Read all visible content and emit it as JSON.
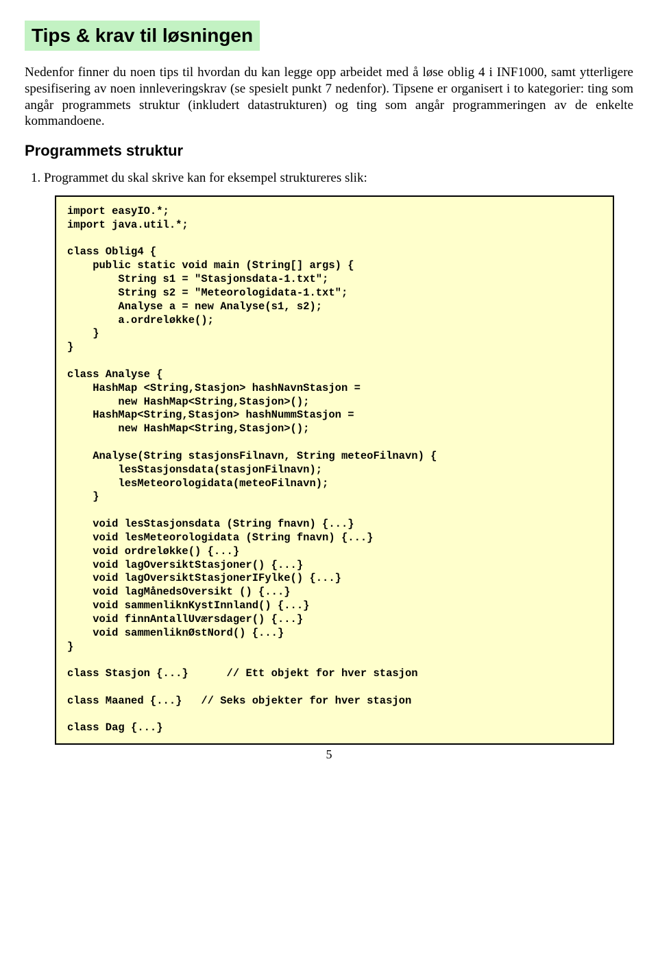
{
  "title": "Tips & krav til løsningen",
  "para1": "Nedenfor finner du noen tips til hvordan du kan legge opp arbeidet med å løse oblig 4 i INF1000, samt ytterligere spesifisering av noen innleveringskrav (se spesielt punkt 7 nedenfor). Tipsene er organisert i to kategorier: ting som angår programmets struktur (inkludert datastrukturen) og ting som angår programmeringen av de enkelte kommandoene.",
  "subheading": "Programmets struktur",
  "list_item_1": "Programmet du skal skrive kan for eksempel struktureres slik:",
  "code": "import easyIO.*;\nimport java.util.*;\n\nclass Oblig4 {\n    public static void main (String[] args) {\n        String s1 = \"Stasjonsdata-1.txt\";\n        String s2 = \"Meteorologidata-1.txt\";\n        Analyse a = new Analyse(s1, s2);\n        a.ordreløkke();\n    }\n}\n\nclass Analyse {\n    HashMap <String,Stasjon> hashNavnStasjon =\n        new HashMap<String,Stasjon>();\n    HashMap<String,Stasjon> hashNummStasjon =\n        new HashMap<String,Stasjon>();\n\n    Analyse(String stasjonsFilnavn, String meteoFilnavn) {\n        lesStasjonsdata(stasjonFilnavn);\n        lesMeteorologidata(meteoFilnavn);\n    }\n\n    void lesStasjonsdata (String fnavn) {...}\n    void lesMeteorologidata (String fnavn) {...}\n    void ordreløkke() {...}\n    void lagOversiktStasjoner() {...}\n    void lagOversiktStasjonerIFylke() {...}\n    void lagMånedsOversikt () {...}\n    void sammenliknKystInnland() {...}\n    void finnAntallUværsdager() {...}\n    void sammenliknØstNord() {...}\n}\n\nclass Stasjon {...}      // Ett objekt for hver stasjon\n\nclass Maaned {...}   // Seks objekter for hver stasjon\n\nclass Dag {...}",
  "colors": {
    "title_highlight": "#c3f2c3",
    "code_bg": "#ffffcc",
    "code_border": "#000000",
    "page_bg": "#ffffff",
    "text": "#000000"
  },
  "fonts": {
    "title_family": "Arial",
    "title_size_pt": 21,
    "body_family": "Times New Roman",
    "body_size_pt": 14,
    "subheading_size_pt": 17,
    "code_family": "Courier New",
    "code_size_pt": 12,
    "code_weight": "bold"
  },
  "page_number": "5"
}
